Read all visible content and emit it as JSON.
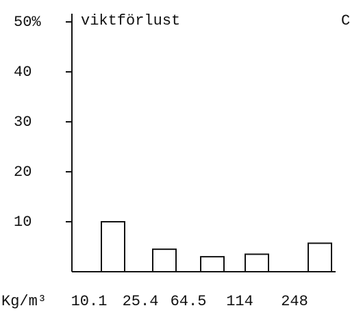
{
  "chart_data": {
    "type": "bar",
    "y_label": "viktförlust",
    "x_label": "Kg/m³",
    "annotation": "C",
    "categories": [
      "10.1",
      "25.4",
      "64.5",
      "114",
      "248"
    ],
    "values": [
      10,
      4.5,
      3,
      3.5,
      5.7
    ],
    "color": "#ffffff",
    "ylim": [
      0,
      50
    ],
    "yticks": [
      10,
      20,
      30,
      40,
      {
        "value": 50,
        "label": "50%"
      }
    ],
    "grid": false
  }
}
